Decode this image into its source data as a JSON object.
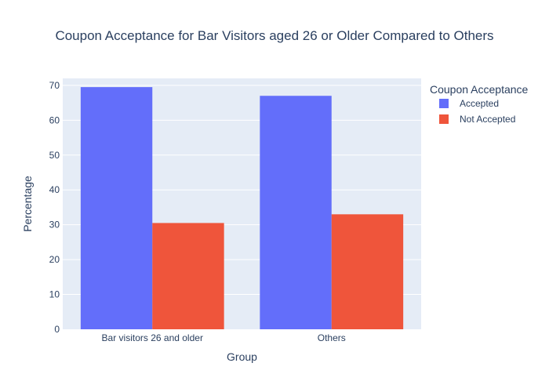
{
  "chart_data": {
    "type": "bar",
    "title": "Coupon Acceptance for Bar Visitors aged 26 or Older Compared to Others",
    "xlabel": "Group",
    "ylabel": "Percentage",
    "categories": [
      "Bar visitors 26 and older",
      "Others"
    ],
    "series": [
      {
        "name": "Accepted",
        "values": [
          69.5,
          67.0
        ],
        "color": "#636efa"
      },
      {
        "name": "Not Accepted",
        "values": [
          30.5,
          33.0
        ],
        "color": "#ef553b"
      }
    ],
    "ylim": [
      0,
      72
    ],
    "yticks": [
      0,
      10,
      20,
      30,
      40,
      50,
      60,
      70
    ],
    "grid": true,
    "legend": {
      "title": "Coupon Acceptance",
      "placement": "right"
    },
    "plot_bg": "#e5ecf6",
    "text_color": "#2a3f5f"
  }
}
